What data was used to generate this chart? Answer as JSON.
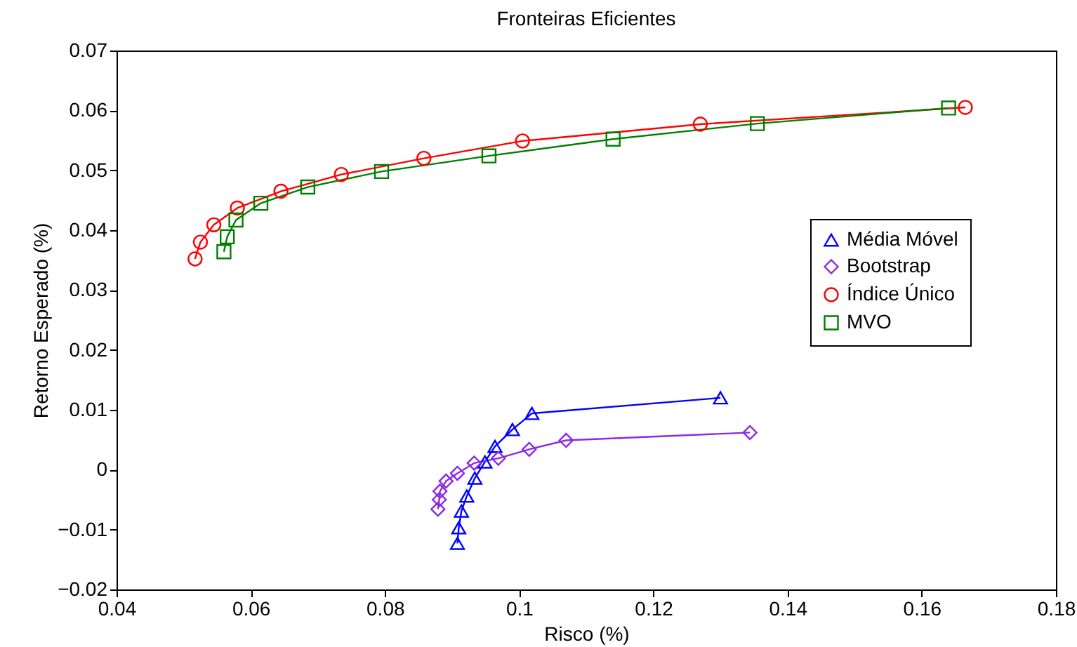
{
  "chart_data": {
    "type": "line",
    "title": "Fronteiras Eficientes",
    "xlabel": "Risco (%)",
    "ylabel": "Retorno Esperado (%)",
    "xlim": [
      0.04,
      0.18
    ],
    "xticks": [
      0.04,
      0.06,
      0.08,
      0.1,
      0.12,
      0.14,
      0.16,
      0.18
    ],
    "ylim": [
      -0.02,
      0.07
    ],
    "yticks": [
      -0.02,
      -0.01,
      0,
      0.01,
      0.02,
      0.03,
      0.04,
      0.05,
      0.06,
      0.07
    ],
    "grid": false,
    "legend": "right",
    "line_style": "solid",
    "series": [
      {
        "name": "Média Móvel",
        "color": "#0000ff",
        "marker": "triangle",
        "x": [
          0.0908,
          0.091,
          0.0914,
          0.0922,
          0.0934,
          0.0949,
          0.0964,
          0.099,
          0.1019,
          0.13
        ],
        "values": [
          -0.0123,
          -0.0097,
          -0.0069,
          -0.0044,
          -0.0014,
          0.0013,
          0.0039,
          0.0067,
          0.0094,
          0.012
        ]
      },
      {
        "name": "Bootstrap",
        "color": "#8a2be2",
        "marker": "diamond",
        "x": [
          0.0879,
          0.0881,
          0.0882,
          0.0891,
          0.0908,
          0.0933,
          0.0969,
          0.1015,
          0.107,
          0.1344
        ],
        "values": [
          -0.0066,
          -0.005,
          -0.0036,
          -0.0019,
          -0.0006,
          0.0011,
          0.0019,
          0.0034,
          0.0049,
          0.0062
        ]
      },
      {
        "name": "Índice Único",
        "color": "#ff0000",
        "marker": "circle",
        "x": [
          0.0517,
          0.0525,
          0.0545,
          0.058,
          0.0645,
          0.0735,
          0.0858,
          0.1005,
          0.127,
          0.1665
        ],
        "values": [
          0.0352,
          0.038,
          0.0409,
          0.0437,
          0.0465,
          0.0493,
          0.052,
          0.0549,
          0.0577,
          0.0605
        ]
      },
      {
        "name": "MVO",
        "color": "#008000",
        "marker": "square",
        "x": [
          0.056,
          0.0565,
          0.0578,
          0.0615,
          0.0685,
          0.0795,
          0.0955,
          0.114,
          0.1355,
          0.164
        ],
        "values": [
          0.0364,
          0.0389,
          0.0417,
          0.0445,
          0.0472,
          0.0498,
          0.0524,
          0.0552,
          0.0578,
          0.0604
        ]
      }
    ]
  }
}
